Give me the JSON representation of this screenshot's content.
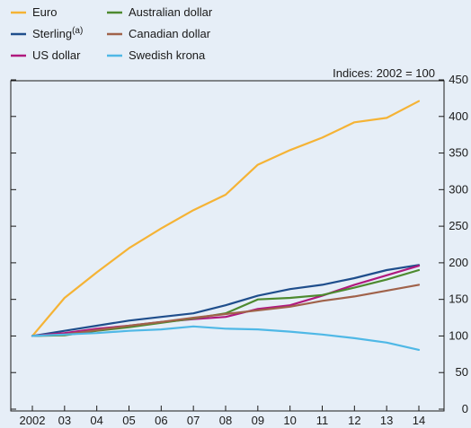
{
  "chart_data": {
    "type": "line",
    "index_label": "Indices:  2002 = 100",
    "categories": [
      "2002",
      "03",
      "04",
      "05",
      "06",
      "07",
      "08",
      "09",
      "10",
      "11",
      "12",
      "13",
      "14"
    ],
    "ylim": [
      0,
      450
    ],
    "y_ticks": [
      0,
      50,
      100,
      150,
      200,
      250,
      300,
      350,
      400,
      450
    ],
    "y_axis_side": "right",
    "grid": false,
    "legend_placement": "top-left",
    "series": [
      {
        "name": "Euro",
        "superscript": "",
        "color": "#f5b335",
        "values": [
          100,
          152,
          187,
          220,
          247,
          272,
          293,
          334,
          354,
          371,
          392,
          398,
          421
        ]
      },
      {
        "name": "Sterling",
        "superscript": "(a)",
        "color": "#1f4e8c",
        "values": [
          100,
          107,
          114,
          121,
          126,
          131,
          142,
          155,
          164,
          170,
          179,
          190,
          197
        ]
      },
      {
        "name": "US dollar",
        "superscript": "",
        "color": "#b0197e",
        "values": [
          100,
          104,
          110,
          114,
          119,
          123,
          126,
          137,
          142,
          155,
          170,
          183,
          196
        ]
      },
      {
        "name": "Australian dollar",
        "superscript": "",
        "color": "#4d8a2f",
        "values": [
          100,
          101,
          107,
          112,
          118,
          124,
          131,
          150,
          152,
          156,
          166,
          177,
          190
        ]
      },
      {
        "name": "Canadian dollar",
        "superscript": "",
        "color": "#a0624a",
        "values": [
          100,
          102,
          108,
          114,
          119,
          125,
          130,
          135,
          140,
          148,
          154,
          162,
          170
        ]
      },
      {
        "name": "Swedish krona",
        "superscript": "",
        "color": "#4fb8e6",
        "values": [
          100,
          102,
          104,
          107,
          109,
          113,
          110,
          109,
          106,
          102,
          97,
          91,
          81
        ]
      }
    ]
  }
}
